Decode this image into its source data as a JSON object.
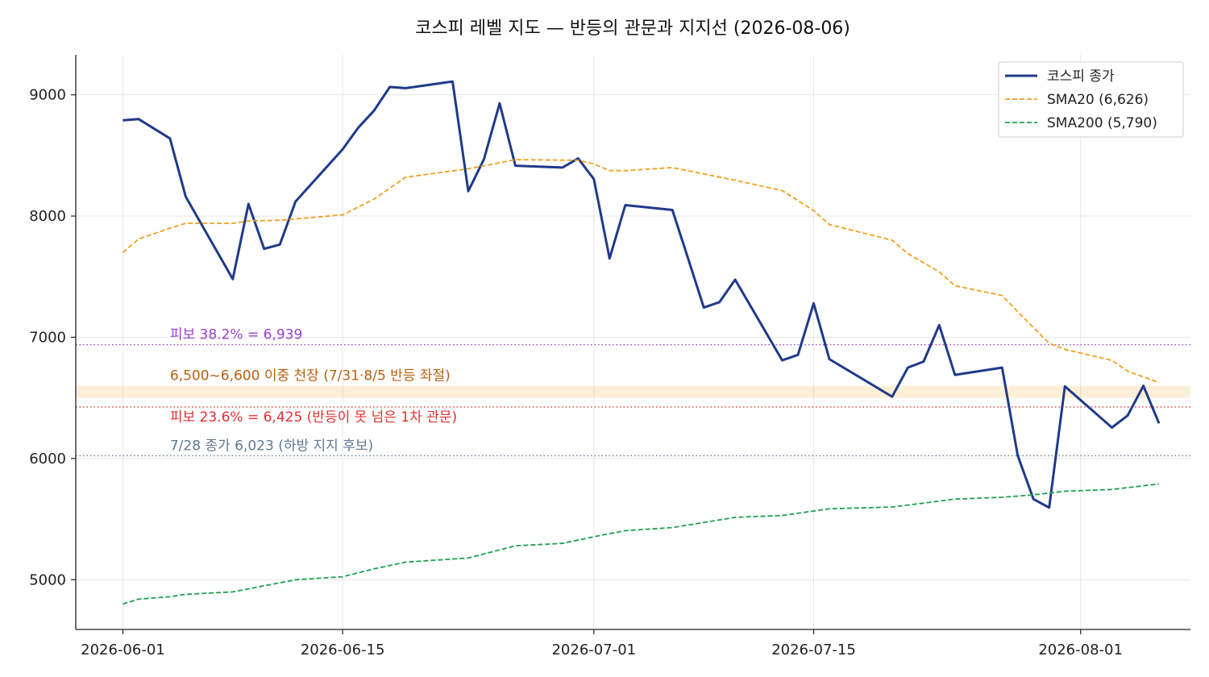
{
  "chart_data": {
    "type": "line",
    "title": "코스피 레벨 지도 — 반등의 관문과 지지선 (2026-08-06)",
    "xlabel": "",
    "ylabel": "",
    "x_ticks": [
      "2026-06-01",
      "2026-06-15",
      "2026-07-01",
      "2026-07-15",
      "2026-08-01"
    ],
    "y_ticks": [
      5000,
      6000,
      7000,
      8000,
      9000
    ],
    "xlim": [
      "2026-05-29",
      "2026-08-08"
    ],
    "ylim": [
      4590,
      9330
    ],
    "grid": true,
    "legend_position": "top-right",
    "series": [
      {
        "name": "코스피 종가",
        "color": "#1f3a8a",
        "style": "solid",
        "points": [
          [
            "2026-06-01",
            8790
          ],
          [
            "2026-06-02",
            8800
          ],
          [
            "2026-06-04",
            8640
          ],
          [
            "2026-06-05",
            8160
          ],
          [
            "2026-06-08",
            7480
          ],
          [
            "2026-06-09",
            8100
          ],
          [
            "2026-06-10",
            7730
          ],
          [
            "2026-06-11",
            7765
          ],
          [
            "2026-06-12",
            8120
          ],
          [
            "2026-06-15",
            8550
          ],
          [
            "2026-06-16",
            8730
          ],
          [
            "2026-06-17",
            8870
          ],
          [
            "2026-06-18",
            9065
          ],
          [
            "2026-06-19",
            9055
          ],
          [
            "2026-06-22",
            9110
          ],
          [
            "2026-06-23",
            8205
          ],
          [
            "2026-06-24",
            8470
          ],
          [
            "2026-06-25",
            8930
          ],
          [
            "2026-06-26",
            8415
          ],
          [
            "2026-06-29",
            8400
          ],
          [
            "2026-06-30",
            8475
          ],
          [
            "2026-07-01",
            8305
          ],
          [
            "2026-07-02",
            7650
          ],
          [
            "2026-07-03",
            8090
          ],
          [
            "2026-07-06",
            8050
          ],
          [
            "2026-07-07",
            7650
          ],
          [
            "2026-07-08",
            7245
          ],
          [
            "2026-07-09",
            7290
          ],
          [
            "2026-07-10",
            7475
          ],
          [
            "2026-07-13",
            6810
          ],
          [
            "2026-07-14",
            6855
          ],
          [
            "2026-07-15",
            7280
          ],
          [
            "2026-07-16",
            6820
          ],
          [
            "2026-07-20",
            6510
          ],
          [
            "2026-07-21",
            6750
          ],
          [
            "2026-07-22",
            6800
          ],
          [
            "2026-07-23",
            7100
          ],
          [
            "2026-07-24",
            6690
          ],
          [
            "2026-07-27",
            6750
          ],
          [
            "2026-07-28",
            6023
          ],
          [
            "2026-07-29",
            5665
          ],
          [
            "2026-07-30",
            5595
          ],
          [
            "2026-07-31",
            6595
          ],
          [
            "2026-08-03",
            6255
          ],
          [
            "2026-08-04",
            6355
          ],
          [
            "2026-08-05",
            6600
          ],
          [
            "2026-08-06",
            6290
          ]
        ]
      },
      {
        "name": "SMA20 (6,626)",
        "color": "#f0a020",
        "style": "dashed",
        "points": [
          [
            "2026-06-01",
            7700
          ],
          [
            "2026-06-02",
            7810
          ],
          [
            "2026-06-04",
            7900
          ],
          [
            "2026-06-05",
            7940
          ],
          [
            "2026-06-08",
            7940
          ],
          [
            "2026-06-09",
            7960
          ],
          [
            "2026-06-11",
            7965
          ],
          [
            "2026-06-15",
            8010
          ],
          [
            "2026-06-17",
            8140
          ],
          [
            "2026-06-19",
            8320
          ],
          [
            "2026-06-23",
            8390
          ],
          [
            "2026-06-26",
            8465
          ],
          [
            "2026-06-30",
            8460
          ],
          [
            "2026-07-01",
            8430
          ],
          [
            "2026-07-02",
            8375
          ],
          [
            "2026-07-03",
            8375
          ],
          [
            "2026-07-06",
            8400
          ],
          [
            "2026-07-10",
            8295
          ],
          [
            "2026-07-13",
            8210
          ],
          [
            "2026-07-15",
            8045
          ],
          [
            "2026-07-16",
            7930
          ],
          [
            "2026-07-20",
            7800
          ],
          [
            "2026-07-21",
            7690
          ],
          [
            "2026-07-23",
            7540
          ],
          [
            "2026-07-24",
            7425
          ],
          [
            "2026-07-27",
            7345
          ],
          [
            "2026-07-28",
            7210
          ],
          [
            "2026-07-30",
            6950
          ],
          [
            "2026-07-31",
            6900
          ],
          [
            "2026-08-03",
            6810
          ],
          [
            "2026-08-04",
            6720
          ],
          [
            "2026-08-06",
            6626
          ]
        ]
      },
      {
        "name": "SMA200 (5,790)",
        "color": "#1fa050",
        "style": "dashed",
        "points": [
          [
            "2026-06-01",
            4800
          ],
          [
            "2026-06-02",
            4840
          ],
          [
            "2026-06-04",
            4860
          ],
          [
            "2026-06-05",
            4880
          ],
          [
            "2026-06-08",
            4900
          ],
          [
            "2026-06-12",
            5000
          ],
          [
            "2026-06-15",
            5025
          ],
          [
            "2026-06-17",
            5090
          ],
          [
            "2026-06-19",
            5145
          ],
          [
            "2026-06-23",
            5180
          ],
          [
            "2026-06-26",
            5280
          ],
          [
            "2026-06-29",
            5300
          ],
          [
            "2026-07-01",
            5355
          ],
          [
            "2026-07-03",
            5405
          ],
          [
            "2026-07-06",
            5430
          ],
          [
            "2026-07-10",
            5515
          ],
          [
            "2026-07-13",
            5530
          ],
          [
            "2026-07-16",
            5585
          ],
          [
            "2026-07-20",
            5600
          ],
          [
            "2026-07-24",
            5665
          ],
          [
            "2026-07-27",
            5680
          ],
          [
            "2026-07-29",
            5700
          ],
          [
            "2026-07-31",
            5730
          ],
          [
            "2026-08-03",
            5745
          ],
          [
            "2026-08-06",
            5790
          ]
        ]
      }
    ],
    "reference_lines": [
      {
        "value": 6939,
        "color": "#9a40d0",
        "label": "피보 38.2% = 6,939"
      },
      {
        "value": 6425,
        "color": "#e03030",
        "label": "피보 23.6% = 6,425 (반등이 못 넘은 1차 관문)"
      },
      {
        "value": 6023,
        "color": "#607890",
        "label": "7/28 종가 6,023 (하방 지지 후보)"
      }
    ],
    "bands": [
      {
        "low": 6500,
        "high": 6600,
        "color": "#f5c060",
        "label": "6,500~6,600 이중 천장 (7/31·8/5 반등 좌절)",
        "label_color": "#b86010"
      }
    ]
  }
}
